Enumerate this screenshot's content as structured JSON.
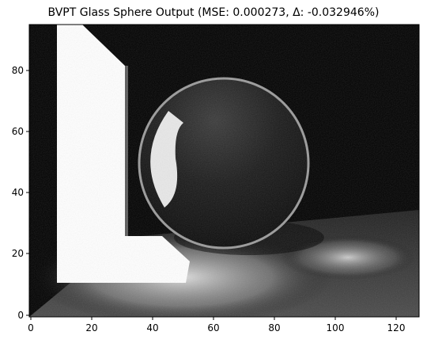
{
  "title": "BVPT Glass Sphere Output (MSE: 0.000273, Δ: -0.032946%)",
  "image_description_colors": {
    "background": "#000000",
    "light_panel": "#ffffff",
    "sphere_edge": "#8a8a8a",
    "floor_glow": "#d8d8d8"
  },
  "axes": {
    "xlim": [
      0,
      128
    ],
    "ylim": [
      0,
      96
    ],
    "x_ticks": [
      "0",
      "20",
      "40",
      "60",
      "80",
      "100",
      "120"
    ],
    "y_ticks": [
      "0",
      "20",
      "40",
      "60",
      "80"
    ]
  }
}
